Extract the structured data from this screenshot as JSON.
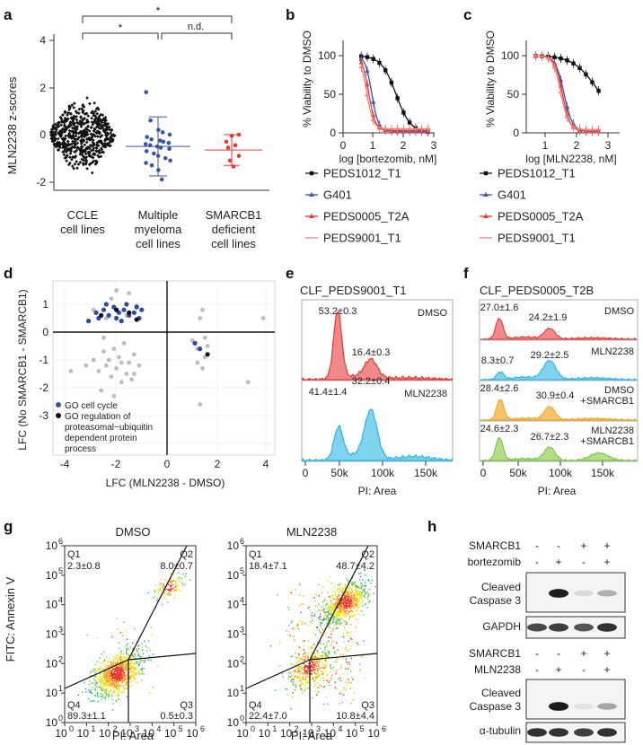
{
  "panel_a": {
    "label": "a",
    "ylabel": "MLN2238 z-scores",
    "yticks": [
      "4",
      "2",
      "0",
      "-2"
    ],
    "groups": [
      {
        "line1": "CCLE",
        "line2": "cell lines",
        "line3": ""
      },
      {
        "line1": "Multiple",
        "line2": "myeloma",
        "line3": "cell lines"
      },
      {
        "line1": "SMARCB1",
        "line2": "deficient",
        "line3": "cell lines"
      }
    ],
    "sig": [
      "*",
      "*",
      "n.d."
    ]
  },
  "panel_b": {
    "label": "b",
    "ylabel": "% Viability to DMSO",
    "xlabel": "log [bortezomib, nM]",
    "yticks": [
      "0",
      "50",
      "100"
    ],
    "xticks": [
      "0",
      "1",
      "2",
      "3"
    ]
  },
  "panel_c": {
    "label": "c",
    "ylabel": "% Viability to DMSO",
    "xlabel": "log [MLN2238, nM]",
    "yticks": [
      "0",
      "50",
      "100"
    ],
    "xticks": [
      "1",
      "2",
      "3"
    ]
  },
  "legend_lines": [
    "PEDS1012_T1",
    "G401",
    "PEDS0005_T2A",
    "PEDS9001_T1"
  ],
  "colors": {
    "black": "#111111",
    "blue": "#3a55a4",
    "red": "#e53935",
    "gray": "#bdbdbd",
    "navy": "#2f4aa0",
    "cyan": "#29b6e6",
    "orange": "#f5a623",
    "green": "#7cc242",
    "salmon": "#f08080"
  },
  "panel_d": {
    "label": "d",
    "ylabel": "LFC (No SMARCB1 - SMARCB1)",
    "xlabel": "LFC (MLN2238 - DMSO)",
    "xticks": [
      "-4",
      "-2",
      "0",
      "2",
      "4"
    ],
    "yticks": [
      "1",
      "0",
      "-1",
      "-2",
      "-3"
    ],
    "legend": [
      "GO cell cycle",
      "GO regulation of",
      "proteasomal−ubiquitin",
      "dependent protein",
      "process"
    ]
  },
  "panel_e": {
    "label": "e",
    "title": "CLF_PEDS9001_T1",
    "conditions": [
      "DMSO",
      "MLN2238"
    ],
    "pct_dmso": [
      "53.2±0.3",
      "16.4±0.3"
    ],
    "pct_mln": [
      "41.4±1.4",
      "32.2±0.4"
    ],
    "xticks": [
      "0",
      "50k",
      "100k",
      "150k"
    ],
    "xlabel": "PI: Area"
  },
  "panel_f": {
    "label": "f",
    "title": "CLF_PEDS0005_T2B",
    "conditions": [
      {
        "l1": "DMSO",
        "l2": "",
        "a": "27.0±1.6",
        "b": "24.2±1.9"
      },
      {
        "l1": "MLN2238",
        "l2": "",
        "a": "8.3±0.7",
        "b": "29.2±2.5"
      },
      {
        "l1": "DMSO",
        "l2": "+SMARCB1",
        "a": "28.4±2.6",
        "b": "30.9±0.4"
      },
      {
        "l1": "MLN2238",
        "l2": "+SMARCB1",
        "a": "24.6±2.3",
        "b": "26.7±2.3"
      }
    ],
    "xticks": [
      "0",
      "50k",
      "100k",
      "150k"
    ],
    "xlabel": "PI: Area"
  },
  "panel_g": {
    "label": "g",
    "ylabel": "FITC: Annexin V",
    "xlabel": "PI: Area",
    "plots": [
      {
        "title": "DMSO",
        "q1": "2.3±0.8",
        "q2": "8.0±0.7",
        "q3": "0.5±0.3",
        "q4": "89.3±1.1"
      },
      {
        "title": "MLN2238",
        "q1": "18.4±7.1",
        "q2": "48.7±4.2",
        "q3": "10.8±4.4",
        "q4": "22.4±7.0"
      }
    ],
    "quad_names": [
      "Q1",
      "Q2",
      "Q3",
      "Q4"
    ],
    "exps": [
      "0",
      "1",
      "2",
      "3",
      "4",
      "5",
      "6"
    ],
    "tick_base": "10"
  },
  "panel_h": {
    "label": "h",
    "smarcb1": "SMARCB1",
    "bortezomib": "bortezomib",
    "mln": "MLN2238",
    "signs_smarcb1": [
      "-",
      "-",
      "+",
      "+"
    ],
    "signs_drug": [
      "-",
      "+",
      "-",
      "+"
    ],
    "cleaved1": "Cleaved",
    "cleaved2": "Caspase 3",
    "gapdh": "GAPDH",
    "tubulin": "α-tubulin"
  }
}
